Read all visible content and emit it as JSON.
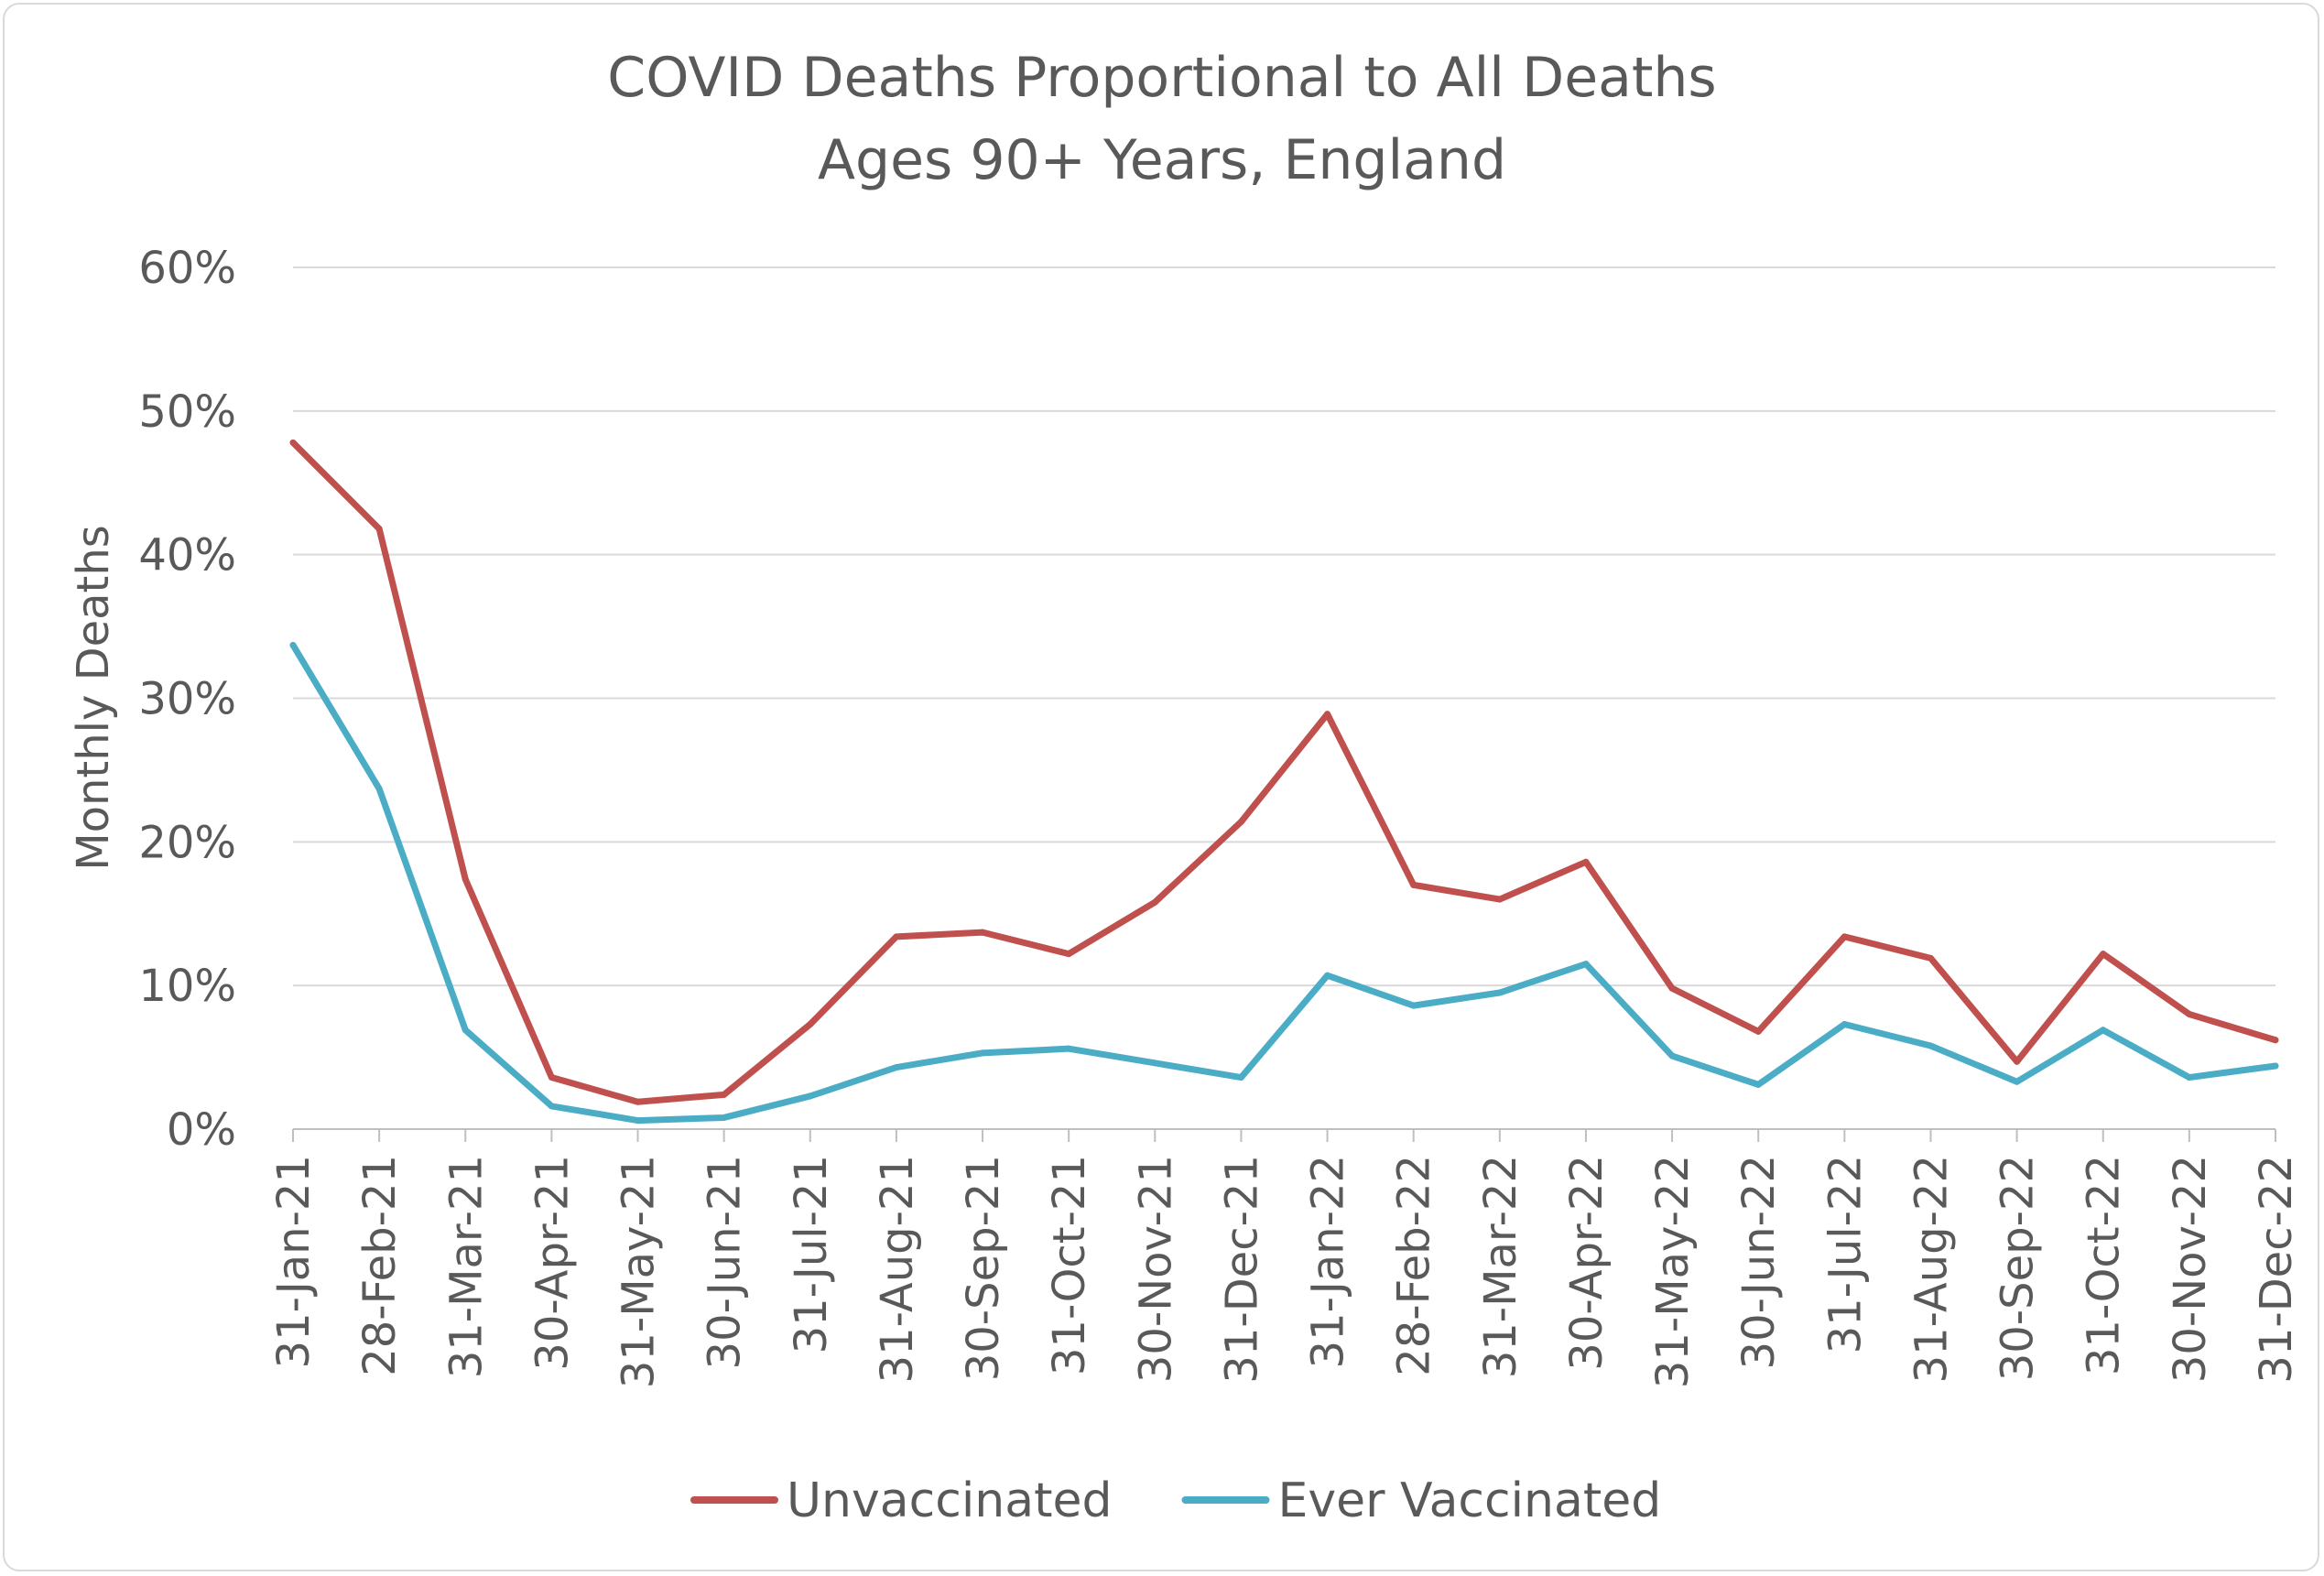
{
  "chart_data": {
    "type": "line",
    "title": "COVID Deaths Proportional to All Deaths",
    "subtitle": "Ages 90+ Years, England",
    "xlabel": "",
    "ylabel": "Monthly Deaths",
    "ylim": [
      0,
      60
    ],
    "yticks": [
      "0%",
      "10%",
      "20%",
      "30%",
      "40%",
      "50%",
      "60%"
    ],
    "grid": true,
    "legend_position": "bottom",
    "categories": [
      "31-Jan-21",
      "28-Feb-21",
      "31-Mar-21",
      "30-Apr-21",
      "31-May-21",
      "30-Jun-21",
      "31-Jul-21",
      "31-Aug-21",
      "30-Sep-21",
      "31-Oct-21",
      "30-Nov-21",
      "31-Dec-21",
      "31-Jan-22",
      "28-Feb-22",
      "31-Mar-22",
      "30-Apr-22",
      "31-May-22",
      "30-Jun-22",
      "31-Jul-22",
      "31-Aug-22",
      "30-Sep-22",
      "31-Oct-22",
      "30-Nov-22",
      "31-Dec-22"
    ],
    "series": [
      {
        "name": "Unvaccinated",
        "color": "#c0504d",
        "values": [
          47.8,
          41.8,
          17.4,
          3.6,
          1.9,
          2.4,
          7.3,
          13.4,
          13.7,
          12.2,
          15.8,
          21.4,
          28.9,
          17.0,
          16.0,
          18.6,
          9.8,
          6.8,
          13.4,
          11.9,
          4.7,
          12.2,
          8.0,
          6.2
        ]
      },
      {
        "name": "Ever Vaccinated",
        "color": "#4bacc6",
        "values": [
          33.7,
          23.7,
          6.9,
          1.6,
          0.6,
          0.8,
          2.3,
          4.3,
          5.3,
          5.6,
          4.6,
          3.6,
          10.7,
          8.6,
          9.5,
          11.5,
          5.1,
          3.1,
          7.3,
          5.8,
          3.3,
          6.9,
          3.6,
          4.4
        ]
      }
    ]
  }
}
